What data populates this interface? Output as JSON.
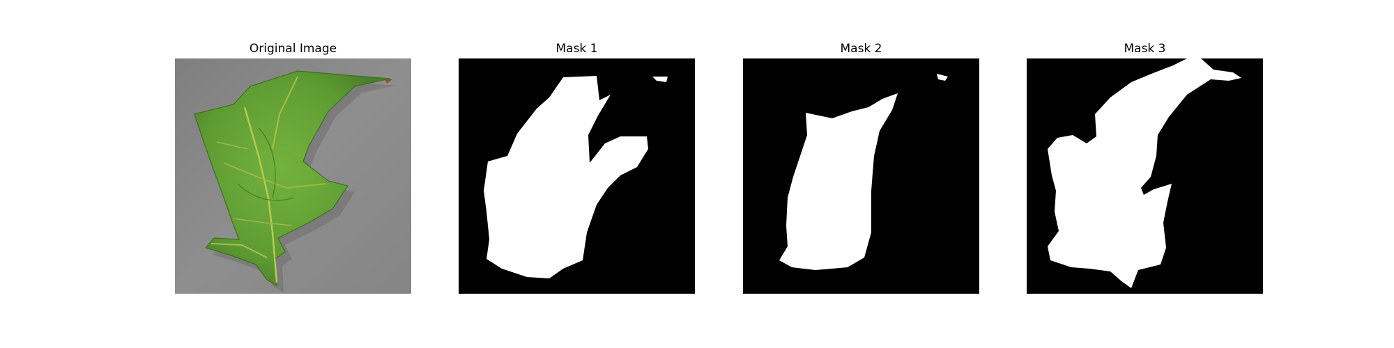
{
  "figure": {
    "panels": [
      {
        "title": "Original Image",
        "kind": "photo"
      },
      {
        "title": "Mask 1",
        "kind": "mask"
      },
      {
        "title": "Mask 2",
        "kind": "mask"
      },
      {
        "title": "Mask 3",
        "kind": "mask"
      }
    ],
    "colors": {
      "background": "#ffffff",
      "mask_background": "#000000",
      "mask_foreground": "#ffffff",
      "photo_background": "#8a8a8a",
      "leaf_green": "#6fae3a",
      "leaf_dark": "#4f8a2a",
      "leaf_vein": "#b9c94c"
    }
  }
}
